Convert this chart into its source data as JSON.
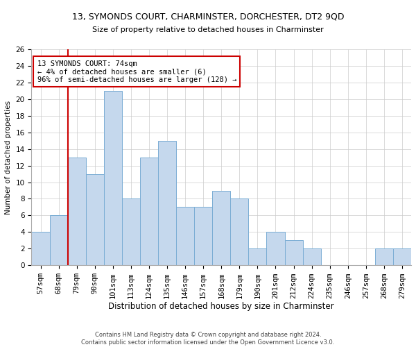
{
  "title1": "13, SYMONDS COURT, CHARMINSTER, DORCHESTER, DT2 9QD",
  "title2": "Size of property relative to detached houses in Charminster",
  "xlabel": "Distribution of detached houses by size in Charminster",
  "ylabel": "Number of detached properties",
  "footnote1": "Contains HM Land Registry data © Crown copyright and database right 2024.",
  "footnote2": "Contains public sector information licensed under the Open Government Licence v3.0.",
  "categories": [
    "57sqm",
    "68sqm",
    "79sqm",
    "90sqm",
    "101sqm",
    "113sqm",
    "124sqm",
    "135sqm",
    "146sqm",
    "157sqm",
    "168sqm",
    "179sqm",
    "190sqm",
    "201sqm",
    "212sqm",
    "224sqm",
    "235sqm",
    "246sqm",
    "257sqm",
    "268sqm",
    "279sqm"
  ],
  "values": [
    4,
    6,
    13,
    11,
    21,
    8,
    13,
    15,
    7,
    7,
    9,
    8,
    2,
    4,
    3,
    2,
    0,
    0,
    0,
    2,
    2
  ],
  "bar_color": "#c5d8ed",
  "bar_edge_color": "#7aadd4",
  "subject_label": "13 SYMONDS COURT: 74sqm",
  "pct_smaller": "4% of detached houses are smaller (6)",
  "pct_larger": "96% of semi-detached houses are larger (128)",
  "annotation_box_color": "#ffffff",
  "annotation_box_edge": "#cc0000",
  "vline_color": "#cc0000",
  "ylim": [
    0,
    26
  ],
  "yticks": [
    0,
    2,
    4,
    6,
    8,
    10,
    12,
    14,
    16,
    18,
    20,
    22,
    24,
    26
  ],
  "grid_color": "#cccccc",
  "title1_fontsize": 9.0,
  "title2_fontsize": 8.0,
  "xlabel_fontsize": 8.5,
  "ylabel_fontsize": 7.5,
  "tick_fontsize": 7.5,
  "annotation_fontsize": 7.5,
  "footnote_fontsize": 6.0
}
